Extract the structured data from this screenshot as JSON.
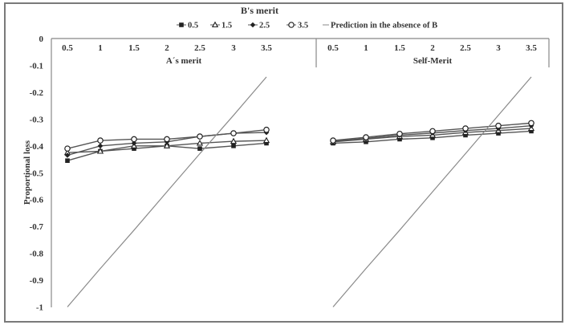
{
  "legend": {
    "title": "B's merit",
    "entries": [
      {
        "label": "0.5",
        "marker": "filled-square"
      },
      {
        "label": "1.5",
        "marker": "open-triangle"
      },
      {
        "label": "2.5",
        "marker": "filled-diamond"
      },
      {
        "label": "3.5",
        "marker": "open-circle"
      },
      {
        "label": "Prediction in the absence of B",
        "marker": "line"
      }
    ]
  },
  "y_axis": {
    "label": "Proportional loss",
    "ticks": [
      "0",
      "-0.1",
      "-0.2",
      "-0.3",
      "-0.4",
      "-0.5",
      "-0.6",
      "-0.7",
      "-0.8",
      "-0.9",
      "-1"
    ]
  },
  "panels": [
    {
      "xlabel": "A´s merit",
      "ticks": [
        "0.5",
        "1",
        "1.5",
        "2",
        "2.5",
        "3",
        "3.5"
      ]
    },
    {
      "xlabel": "Self-Merit",
      "ticks": [
        "0.5",
        "1",
        "1.5",
        "2",
        "2.5",
        "3",
        "3.5"
      ]
    }
  ],
  "chart_data": [
    {
      "type": "line",
      "title": "",
      "xlabel": "A´s merit",
      "ylabel": "Proportional loss",
      "ylim": [
        -1,
        0
      ],
      "x": [
        0.5,
        1,
        1.5,
        2,
        2.5,
        3,
        3.5
      ],
      "legend_title": "B's merit",
      "legend_position": "top",
      "grid": false,
      "series": [
        {
          "name": "0.5",
          "values": [
            -0.455,
            -0.42,
            -0.41,
            -0.4,
            -0.41,
            -0.4,
            -0.39
          ]
        },
        {
          "name": "1.5",
          "values": [
            -0.425,
            -0.42,
            -0.4,
            -0.4,
            -0.39,
            -0.383,
            -0.38
          ]
        },
        {
          "name": "2.5",
          "values": [
            -0.435,
            -0.4,
            -0.39,
            -0.385,
            -0.365,
            -0.353,
            -0.35
          ]
        },
        {
          "name": "3.5",
          "values": [
            -0.41,
            -0.38,
            -0.375,
            -0.375,
            -0.365,
            -0.353,
            -0.34
          ]
        },
        {
          "name": "Prediction in the absence of B",
          "values": [
            -1.0,
            -0.857,
            -0.714,
            -0.571,
            -0.429,
            -0.286,
            -0.143
          ]
        }
      ]
    },
    {
      "type": "line",
      "title": "",
      "xlabel": "Self-Merit",
      "ylabel": "Proportional loss",
      "ylim": [
        -1,
        0
      ],
      "x": [
        0.5,
        1,
        1.5,
        2,
        2.5,
        3,
        3.5
      ],
      "legend_title": "B's merit",
      "legend_position": "top",
      "grid": false,
      "series": [
        {
          "name": "0.5",
          "values": [
            -0.39,
            -0.385,
            -0.375,
            -0.37,
            -0.36,
            -0.353,
            -0.345
          ]
        },
        {
          "name": "1.5",
          "values": [
            -0.385,
            -0.375,
            -0.365,
            -0.36,
            -0.35,
            -0.343,
            -0.335
          ]
        },
        {
          "name": "2.5",
          "values": [
            -0.383,
            -0.372,
            -0.36,
            -0.352,
            -0.343,
            -0.335,
            -0.325
          ]
        },
        {
          "name": "3.5",
          "values": [
            -0.38,
            -0.368,
            -0.355,
            -0.345,
            -0.335,
            -0.325,
            -0.315
          ]
        },
        {
          "name": "Prediction in the absence of B",
          "values": [
            -1.0,
            -0.857,
            -0.714,
            -0.571,
            -0.429,
            -0.286,
            -0.143
          ]
        }
      ]
    }
  ]
}
